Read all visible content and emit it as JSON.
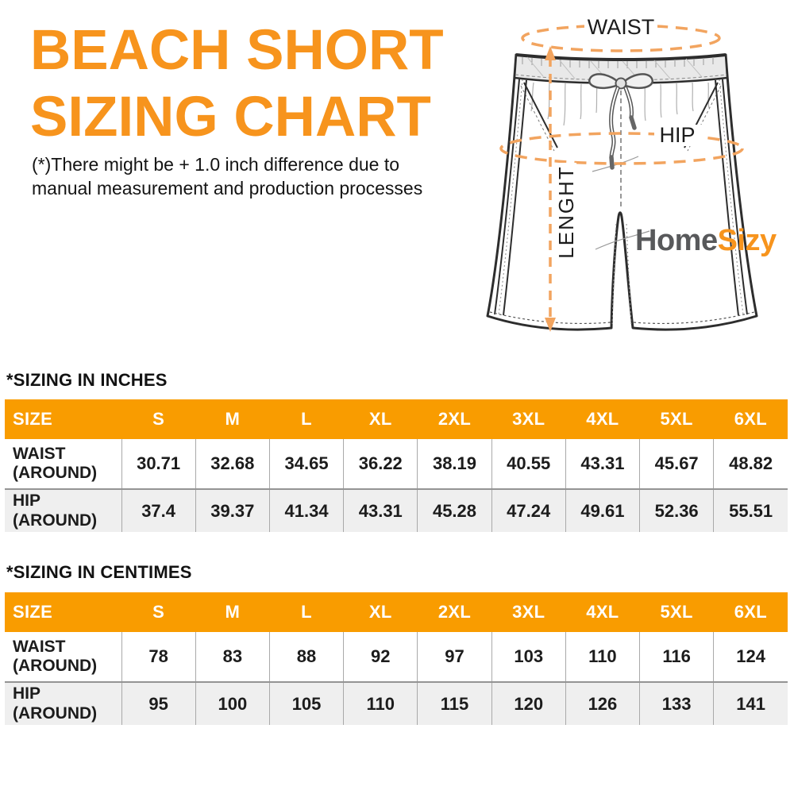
{
  "header": {
    "title_lines": [
      "BEACH SHORT",
      "SIZING CHART"
    ],
    "disclaimer_lines": [
      "(*)There might be + 1.0 inch difference due to",
      "manual measurement and production processes"
    ]
  },
  "diagram": {
    "waist_label": "WAIST",
    "hip_label": "HIP",
    "length_label": "LENGHT",
    "brand_part1": "Home",
    "brand_part2": "Sizy"
  },
  "colors": {
    "title_orange": "#F7941D",
    "table_header_orange": "#F99C00",
    "measure_dash_orange": "#F2A45F",
    "brand_gray": "#58595B",
    "hip_row_bg": "#EFEFEF",
    "line_art": "#2D2D2D"
  },
  "tables": [
    {
      "heading": "*SIZING IN INCHES",
      "columns": [
        "SIZE",
        "S",
        "M",
        "L",
        "XL",
        "2XL",
        "3XL",
        "4XL",
        "5XL",
        "6XL"
      ],
      "rows": [
        {
          "label": "WAIST (AROUND)",
          "values": [
            "30.71",
            "32.68",
            "34.65",
            "36.22",
            "38.19",
            "40.55",
            "43.31",
            "45.67",
            "48.82"
          ]
        },
        {
          "label": "HIP (AROUND)",
          "values": [
            "37.4",
            "39.37",
            "41.34",
            "43.31",
            "45.28",
            "47.24",
            "49.61",
            "52.36",
            "55.51"
          ]
        }
      ]
    },
    {
      "heading": "*SIZING IN CENTIMES",
      "columns": [
        "SIZE",
        "S",
        "M",
        "L",
        "XL",
        "2XL",
        "3XL",
        "4XL",
        "5XL",
        "6XL"
      ],
      "rows": [
        {
          "label": "WAIST (AROUND)",
          "values": [
            "78",
            "83",
            "88",
            "92",
            "97",
            "103",
            "110",
            "116",
            "124"
          ]
        },
        {
          "label": "HIP (AROUND)",
          "values": [
            "95",
            "100",
            "105",
            "110",
            "115",
            "120",
            "126",
            "133",
            "141"
          ]
        }
      ]
    }
  ]
}
